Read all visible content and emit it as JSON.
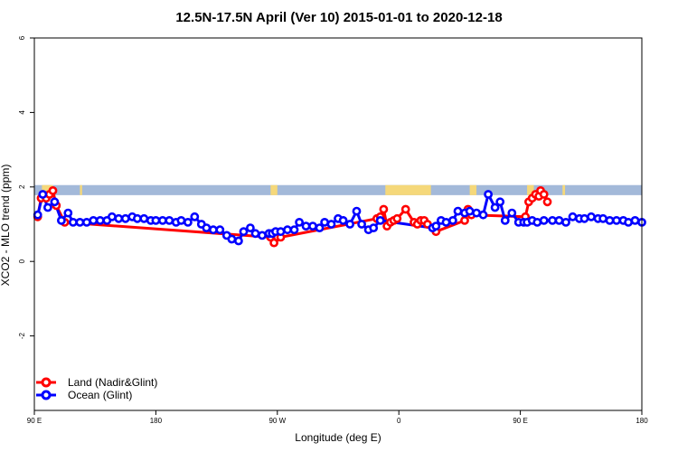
{
  "chart_data": {
    "type": "line",
    "title": "12.5N-17.5N April (Ver 10)   2015-01-01 to 2020-12-18",
    "xlabel": "Longitude (deg E)",
    "ylabel": "XCO2 - MLO trend (ppm)",
    "xlim": [
      90,
      450
    ],
    "ylim": [
      -4,
      6
    ],
    "x_ticks": [
      {
        "value": 90,
        "label": "90 E"
      },
      {
        "value": 162,
        "label": "180"
      },
      {
        "value": 234,
        "label": "90 W"
      },
      {
        "value": 306,
        "label": "0"
      },
      {
        "value": 378,
        "label": "90 E"
      },
      {
        "value": 450,
        "label": "180"
      }
    ],
    "y_ticks": [
      {
        "value": -2,
        "label": "-2"
      },
      {
        "value": 0,
        "label": "0"
      },
      {
        "value": 2,
        "label": "2"
      },
      {
        "value": 4,
        "label": "4"
      },
      {
        "value": 6,
        "label": "6"
      }
    ],
    "grid": false,
    "legend_position": "bottom-left",
    "land_strip": {
      "y_range": [
        1.78,
        2.05
      ],
      "ocean_color": "#a3b9d9",
      "land_color": "#f5d87a",
      "land_segments": [
        [
          94.5,
          101
        ],
        [
          117,
          118.3
        ],
        [
          230,
          234
        ],
        [
          298,
          325
        ],
        [
          348,
          352
        ],
        [
          382,
          386
        ],
        [
          403,
          404.5
        ]
      ]
    },
    "series": [
      {
        "name": "Land (Nadir&Glint)",
        "color": "#ff0000",
        "x": [
          92,
          94,
          97,
          99,
          101,
          103,
          108,
          230,
          232,
          234,
          236,
          293,
          295,
          297,
          299,
          301,
          303,
          305,
          310,
          315,
          317,
          319,
          321,
          323,
          328,
          345,
          347,
          349,
          381,
          383,
          385,
          387,
          389,
          390,
          392,
          394
        ],
        "y": [
          1.2,
          1.7,
          1.7,
          1.8,
          1.9,
          1.5,
          1.05,
          0.65,
          0.5,
          0.65,
          0.65,
          1.15,
          1.2,
          1.4,
          0.95,
          1.05,
          1.1,
          1.15,
          1.4,
          1.05,
          1.0,
          1.1,
          1.1,
          1.0,
          0.8,
          1.1,
          1.4,
          1.25,
          1.2,
          1.6,
          1.7,
          1.8,
          1.75,
          1.9,
          1.8,
          1.6
        ]
      },
      {
        "name": "Ocean (Glint)",
        "color": "#0000ff",
        "x": [
          92,
          95,
          98,
          102,
          106,
          110,
          113,
          117,
          121,
          125,
          129,
          133,
          136,
          140,
          144,
          148,
          151,
          155,
          159,
          162,
          166,
          170,
          174,
          177,
          181,
          185,
          189,
          192,
          196,
          200,
          204,
          207,
          211,
          214,
          218,
          221,
          225,
          229,
          231,
          233,
          236,
          240,
          244,
          247,
          251,
          255,
          259,
          262,
          266,
          270,
          273,
          277,
          281,
          284,
          288,
          291,
          295,
          326,
          328,
          331,
          334,
          338,
          341,
          345,
          348,
          352,
          356,
          359,
          363,
          366,
          369,
          373,
          377,
          380,
          382,
          385,
          388,
          392,
          397,
          401,
          405,
          409,
          413,
          416,
          420,
          424,
          427,
          431,
          435,
          439,
          442,
          446,
          450
        ],
        "y": [
          1.25,
          1.8,
          1.45,
          1.6,
          1.1,
          1.3,
          1.05,
          1.05,
          1.05,
          1.1,
          1.1,
          1.1,
          1.2,
          1.15,
          1.15,
          1.2,
          1.15,
          1.15,
          1.1,
          1.1,
          1.1,
          1.1,
          1.05,
          1.1,
          1.05,
          1.2,
          1.0,
          0.9,
          0.85,
          0.85,
          0.7,
          0.6,
          0.55,
          0.8,
          0.9,
          0.75,
          0.7,
          0.75,
          0.75,
          0.8,
          0.8,
          0.85,
          0.85,
          1.05,
          0.95,
          0.95,
          0.9,
          1.05,
          1.0,
          1.15,
          1.1,
          1.0,
          1.35,
          1.0,
          0.85,
          0.9,
          1.1,
          0.9,
          0.95,
          1.1,
          1.05,
          1.1,
          1.35,
          1.3,
          1.35,
          1.3,
          1.25,
          1.8,
          1.45,
          1.6,
          1.1,
          1.3,
          1.05,
          1.05,
          1.05,
          1.1,
          1.05,
          1.1,
          1.1,
          1.1,
          1.05,
          1.2,
          1.15,
          1.15,
          1.2,
          1.15,
          1.15,
          1.1,
          1.1,
          1.1,
          1.05,
          1.1,
          1.05
        ]
      }
    ]
  }
}
